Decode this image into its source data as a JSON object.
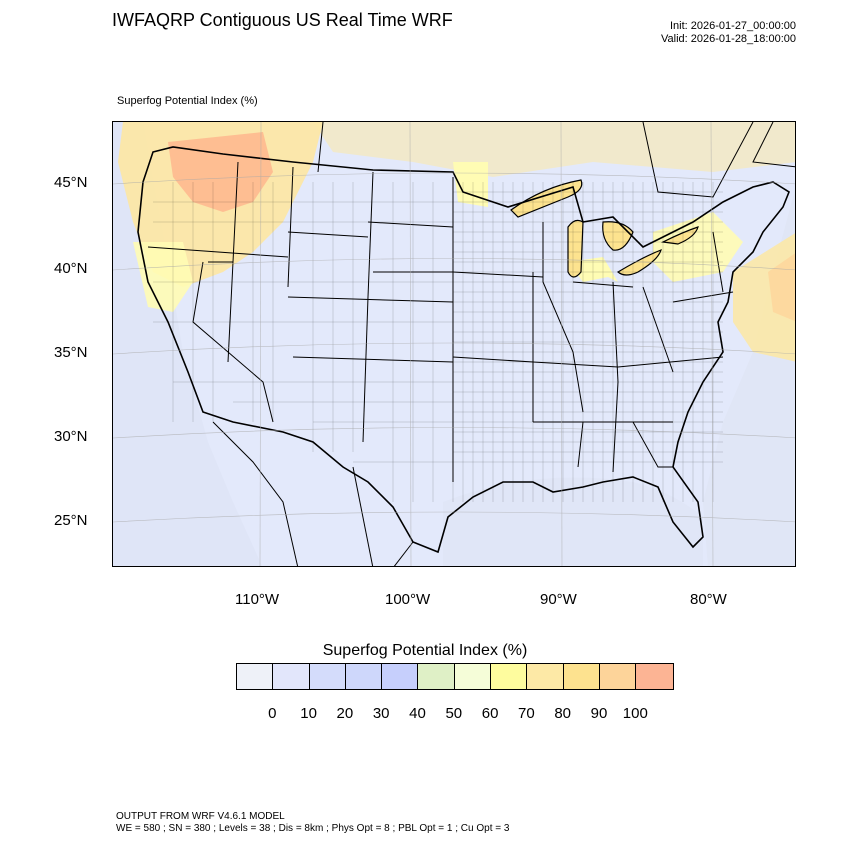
{
  "header": {
    "title": "IWFAQRP Contiguous US Real Time WRF",
    "init": "Init: 2026-01-27_00:00:00",
    "valid": "Valid: 2026-01-28_18:00:00"
  },
  "map": {
    "field_label": "Superfog Potential Index   (%)",
    "lat_labels": [
      "45°N",
      "40°N",
      "35°N",
      "30°N",
      "25°N"
    ],
    "lon_labels": [
      "110°W",
      "100°W",
      "90°W",
      "80°W"
    ],
    "colors": {
      "land_background": "#e3e9fb",
      "ocean": "#dfe5f7",
      "high_index": "#ffb08a",
      "mid_index": "#fde7a2",
      "low_index": "#fffcb4",
      "boundary": "#000000"
    }
  },
  "colorbar": {
    "title": "Superfog Potential Index  (%)",
    "ticks": [
      "0",
      "10",
      "20",
      "30",
      "40",
      "50",
      "60",
      "70",
      "80",
      "90",
      "100"
    ],
    "colors": [
      "#eef1f8",
      "#e2e6fb",
      "#d4dcfb",
      "#ced7fb",
      "#c6cffc",
      "#dff0c6",
      "#f5fdd8",
      "#fefc9e",
      "#fde9a6",
      "#fde28f",
      "#fdd49a",
      "#fcb494"
    ]
  },
  "footer": {
    "line1": "OUTPUT FROM WRF V4.6.1 MODEL",
    "line2": "WE = 580 ; SN = 380 ; Levels = 38 ; Dis = 8km ; Phys Opt = 8 ; PBL Opt = 1 ; Cu Opt = 3"
  }
}
